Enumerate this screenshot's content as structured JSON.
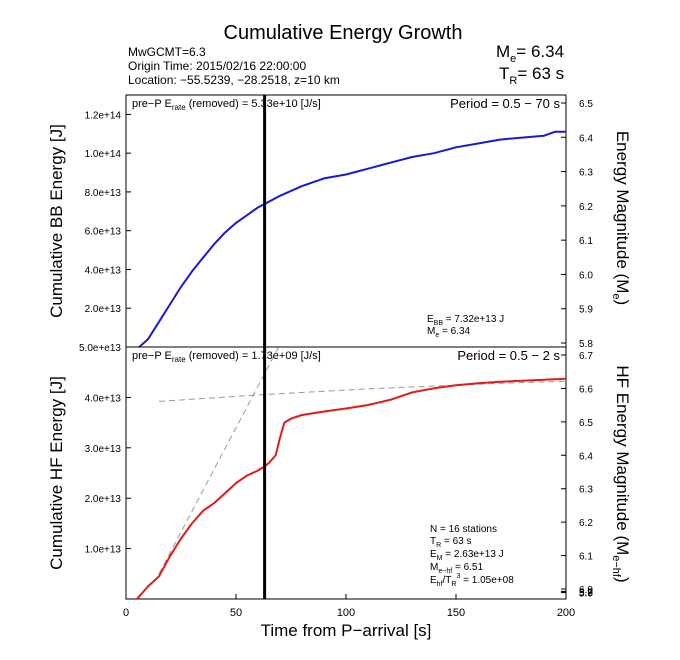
{
  "figure": {
    "title": "Cumulative Energy Growth",
    "info": {
      "line1": "MwGCMT=6.3",
      "line2": "Origin Time: 2015/02/16 22:00:00",
      "line3": "Location: −55.5239, −28.2518, z=10 km"
    },
    "me_main": "6.34",
    "tr_value": "= 63 s",
    "xlabel": "Time from P−arrival [s]"
  },
  "chart_data": [
    {
      "type": "line",
      "panel": "top",
      "ylabel": "Cumulative BB Energy [J]",
      "y2label_main": "Energy Magnitude (M",
      "y2label_sub": "e",
      "y2label_close": ")",
      "pre_p_prefix": "pre−P E",
      "pre_p_sub": "rate",
      "pre_p_suffix": " (removed) = 5.33e+10 [J/s]",
      "period": "Period = 0.5 − 70 s",
      "stats": [
        {
          "main": "E",
          "sub": "BB",
          "rest": " = 7.32e+13 J"
        },
        {
          "main": "M",
          "sub": "e",
          "rest": " = 6.34"
        }
      ],
      "xlim": [
        0,
        200
      ],
      "ylim": [
        0,
        130000000000000.0
      ],
      "yticks": [
        20000000000000.0,
        40000000000000.0,
        60000000000000.0,
        80000000000000.0,
        100000000000000.0,
        120000000000000.0
      ],
      "ytick_labels": [
        "2.0e+13",
        "4.0e+13",
        "6.0e+13",
        "8.0e+13",
        "1.0e+14",
        "1.2e+14"
      ],
      "y2ticks": [
        5.8,
        5.9,
        6.0,
        6.1,
        6.2,
        6.3,
        6.4,
        6.5
      ],
      "y2tick_labels": [
        "5.8",
        "5.9",
        "6.0",
        "6.1",
        "6.2",
        "6.3",
        "6.4",
        "6.5"
      ],
      "vline_x": 63,
      "series": [
        {
          "color": "#1a1acc",
          "x": [
            6,
            10,
            15,
            20,
            25,
            30,
            35,
            40,
            45,
            50,
            55,
            60,
            65,
            70,
            80,
            90,
            100,
            110,
            120,
            130,
            140,
            150,
            160,
            170,
            180,
            190,
            195,
            200
          ],
          "y": [
            0,
            4000000000000.0,
            13000000000000.0,
            22000000000000.0,
            31000000000000.0,
            39000000000000.0,
            46000000000000.0,
            53000000000000.0,
            59000000000000.0,
            64000000000000.0,
            68000000000000.0,
            72000000000000.0,
            75000000000000.0,
            78000000000000.0,
            83000000000000.0,
            87000000000000.0,
            89000000000000.0,
            92000000000000.0,
            95000000000000.0,
            98000000000000.0,
            100000000000000.0,
            103000000000000.0,
            105000000000000.0,
            107000000000000.0,
            108000000000000.0,
            109000000000000.0,
            111000000000000.0,
            111000000000000.0
          ]
        }
      ]
    },
    {
      "type": "line",
      "panel": "bottom",
      "ylabel": "Cumulative HF Energy [J]",
      "y2label_main": "HF Energy Magnitude (M",
      "y2label_sub": "e−hf",
      "y2label_close": ")",
      "pre_p_prefix": "pre−P E",
      "pre_p_sub": "rate",
      "pre_p_suffix": " (removed) = 1.73e+09 [J/s]",
      "period": "Period = 0.5 − 2 s",
      "stats": [
        {
          "main": "N = 16 stations",
          "sub": "",
          "rest": ""
        },
        {
          "main": "T",
          "sub": "R",
          "rest": " = 63  s"
        },
        {
          "main": "E",
          "sub": "M",
          "rest": " = 2.63e+13 J"
        },
        {
          "main": "M",
          "sub": "e−hf",
          "rest": " = 6.51"
        },
        {
          "main": "E",
          "sub": "hf",
          "rest": "/T",
          "sub2": "R",
          "sup": "3",
          "rest2": " =  1.05e+08"
        }
      ],
      "xlim": [
        0,
        200
      ],
      "ylim": [
        0,
        50000000000000.0
      ],
      "xticks": [
        0,
        50,
        100,
        150,
        200
      ],
      "xtick_labels": [
        "0",
        "50",
        "100",
        "150",
        "200"
      ],
      "yticks": [
        10000000000000.0,
        20000000000000.0,
        30000000000000.0,
        40000000000000.0,
        50000000000000.0
      ],
      "ytick_labels": [
        "1.0e+13",
        "2.0e+13",
        "3.0e+13",
        "4.0e+13",
        "5.0e+e13"
      ],
      "y2ticks": [
        5.7,
        5.8,
        5.9,
        6.0,
        6.1,
        6.2,
        6.3,
        6.4,
        6.5,
        6.6,
        6.7
      ],
      "y2tick_labels": [
        "5.7",
        "5.8",
        "5.9",
        "6.0",
        "6.1",
        "6.2",
        "6.3",
        "6.4",
        "6.5",
        "6.6",
        "6.7"
      ],
      "vline_x": 63,
      "series": [
        {
          "color": "#e31a1a",
          "x": [
            5,
            10,
            15,
            20,
            25,
            30,
            35,
            40,
            45,
            50,
            55,
            60,
            63,
            65,
            68,
            70,
            72,
            75,
            80,
            90,
            100,
            110,
            120,
            130,
            140,
            150,
            160,
            170,
            180,
            190,
            200
          ],
          "y": [
            0,
            2500000000000.0,
            4500000000000.0,
            8500000000000.0,
            12000000000000.0,
            15000000000000.0,
            17500000000000.0,
            19000000000000.0,
            21000000000000.0,
            23000000000000.0,
            24500000000000.0,
            25500000000000.0,
            26300000000000.0,
            27000000000000.0,
            28500000000000.0,
            32000000000000.0,
            35000000000000.0,
            35800000000000.0,
            36500000000000.0,
            37200000000000.0,
            37800000000000.0,
            38500000000000.0,
            39500000000000.0,
            41000000000000.0,
            41800000000000.0,
            42400000000000.0,
            42800000000000.0,
            43100000000000.0,
            43300000000000.0,
            43500000000000.0,
            43700000000000.0
          ]
        }
      ],
      "dashed_lines": [
        {
          "color": "#999999",
          "x": [
            15,
            70
          ],
          "y": [
            5000000000000.0,
            50500000000000.0
          ]
        },
        {
          "color": "#999999",
          "x": [
            15,
            60,
            110,
            170,
            200
          ],
          "y": [
            39200000000000.0,
            40500000000000.0,
            41700000000000.0,
            42800000000000.0,
            43200000000000.0
          ]
        }
      ]
    }
  ]
}
